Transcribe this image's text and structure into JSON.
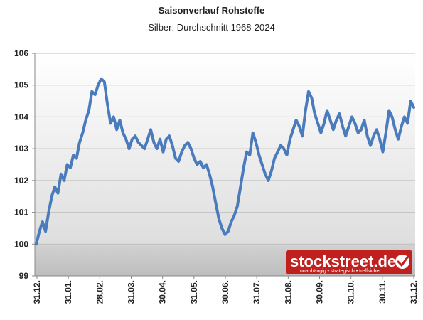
{
  "chart_data": {
    "type": "line",
    "title": "Saisonverlauf Rohstoffe",
    "subtitle": "Silber: Durchschnitt 1968-2024",
    "xlabel": "",
    "ylabel": "",
    "ylim": [
      99,
      106
    ],
    "yticks": [
      99,
      100,
      101,
      102,
      103,
      104,
      105,
      106
    ],
    "xtick_labels": [
      "31.12.",
      "31.01.",
      "28.02.",
      "31.03.",
      "30.04.",
      "31.05.",
      "30.06.",
      "31.07.",
      "31.08.",
      "30.09.",
      "31.10.",
      "30.11.",
      "31.12."
    ],
    "grid": true,
    "legend": "none",
    "line_color": "#4a7bbd",
    "series": [
      {
        "values": [
          100.0,
          100.4,
          100.7,
          100.4,
          101.0,
          101.5,
          101.8,
          101.6,
          102.2,
          102.0,
          102.5,
          102.4,
          102.8,
          102.7,
          103.2,
          103.5,
          103.9,
          104.2,
          104.8,
          104.7,
          105.0,
          105.2,
          105.1,
          104.4,
          103.8,
          104.0,
          103.6,
          103.9,
          103.5,
          103.3,
          103.0,
          103.3,
          103.4,
          103.2,
          103.1,
          103.0,
          103.3,
          103.6,
          103.2,
          103.0,
          103.3,
          102.9,
          103.3,
          103.4,
          103.1,
          102.7,
          102.6,
          102.9,
          103.1,
          103.2,
          103.0,
          102.7,
          102.5,
          102.6,
          102.4,
          102.5,
          102.2,
          101.8,
          101.3,
          100.8,
          100.5,
          100.3,
          100.4,
          100.7,
          100.9,
          101.2,
          101.8,
          102.4,
          102.9,
          102.8,
          103.5,
          103.2,
          102.8,
          102.5,
          102.2,
          102.0,
          102.3,
          102.7,
          102.9,
          103.1,
          103.0,
          102.8,
          103.3,
          103.6,
          103.9,
          103.7,
          103.4,
          104.2,
          104.8,
          104.6,
          104.1,
          103.8,
          103.5,
          103.8,
          104.2,
          103.9,
          103.6,
          103.9,
          104.1,
          103.7,
          103.4,
          103.7,
          104.0,
          103.8,
          103.5,
          103.6,
          103.9,
          103.4,
          103.1,
          103.4,
          103.6,
          103.3,
          102.9,
          103.5,
          104.2,
          104.0,
          103.6,
          103.3,
          103.7,
          104.0,
          103.8,
          104.5,
          104.3
        ],
        "color": "#4a7bbd"
      }
    ]
  },
  "watermark": {
    "brand": "stockstreet.de",
    "tagline": "unabhängig • strategisch • treffsicher",
    "bg_color": "#c0211f"
  }
}
